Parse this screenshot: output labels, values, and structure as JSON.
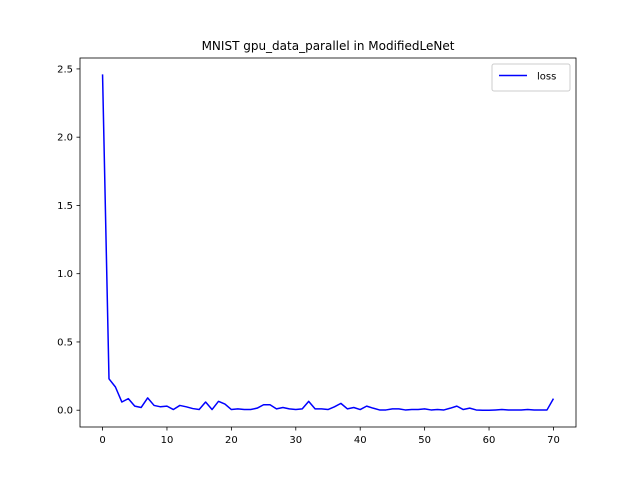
{
  "chart_data": {
    "type": "line",
    "title": "MNIST gpu_data_parallel in ModifiedLeNet",
    "xlabel": "",
    "ylabel": "",
    "xlim": [
      -3.5,
      73.5
    ],
    "ylim": [
      -0.123,
      2.58
    ],
    "xticks": [
      0,
      10,
      20,
      30,
      40,
      50,
      60,
      70
    ],
    "yticks": [
      0.0,
      0.5,
      1.0,
      1.5,
      2.0,
      2.5
    ],
    "xtick_labels": [
      "0",
      "10",
      "20",
      "30",
      "40",
      "50",
      "60",
      "70"
    ],
    "ytick_labels": [
      "0.0",
      "0.5",
      "1.0",
      "1.5",
      "2.0",
      "2.5"
    ],
    "grid": false,
    "legend_position": "top-right",
    "series": [
      {
        "name": "loss",
        "color": "#0000ff",
        "x": [
          0,
          1,
          2,
          3,
          4,
          5,
          6,
          7,
          8,
          9,
          10,
          11,
          12,
          13,
          14,
          15,
          16,
          17,
          18,
          19,
          20,
          21,
          22,
          23,
          24,
          25,
          26,
          27,
          28,
          29,
          30,
          31,
          32,
          33,
          34,
          35,
          36,
          37,
          38,
          39,
          40,
          41,
          42,
          43,
          44,
          45,
          46,
          47,
          48,
          49,
          50,
          51,
          52,
          53,
          54,
          55,
          56,
          57,
          58,
          59,
          60,
          61,
          62,
          63,
          64,
          65,
          66,
          67,
          68,
          69,
          70
        ],
        "values": [
          2.46,
          0.23,
          0.17,
          0.06,
          0.085,
          0.03,
          0.02,
          0.09,
          0.035,
          0.025,
          0.03,
          0.005,
          0.035,
          0.025,
          0.012,
          0.005,
          0.06,
          0.005,
          0.065,
          0.045,
          0.005,
          0.01,
          0.005,
          0.005,
          0.015,
          0.04,
          0.04,
          0.01,
          0.02,
          0.01,
          0.005,
          0.01,
          0.065,
          0.01,
          0.01,
          0.005,
          0.025,
          0.05,
          0.01,
          0.02,
          0.005,
          0.03,
          0.015,
          0.002,
          0.002,
          0.01,
          0.01,
          0.002,
          0.005,
          0.005,
          0.01,
          0.002,
          0.005,
          0.002,
          0.015,
          0.03,
          0.005,
          0.015,
          0.002,
          0.0,
          0.0,
          0.002,
          0.005,
          0.002,
          0.002,
          0.002,
          0.005,
          0.002,
          0.002,
          0.002,
          0.085
        ]
      }
    ]
  }
}
